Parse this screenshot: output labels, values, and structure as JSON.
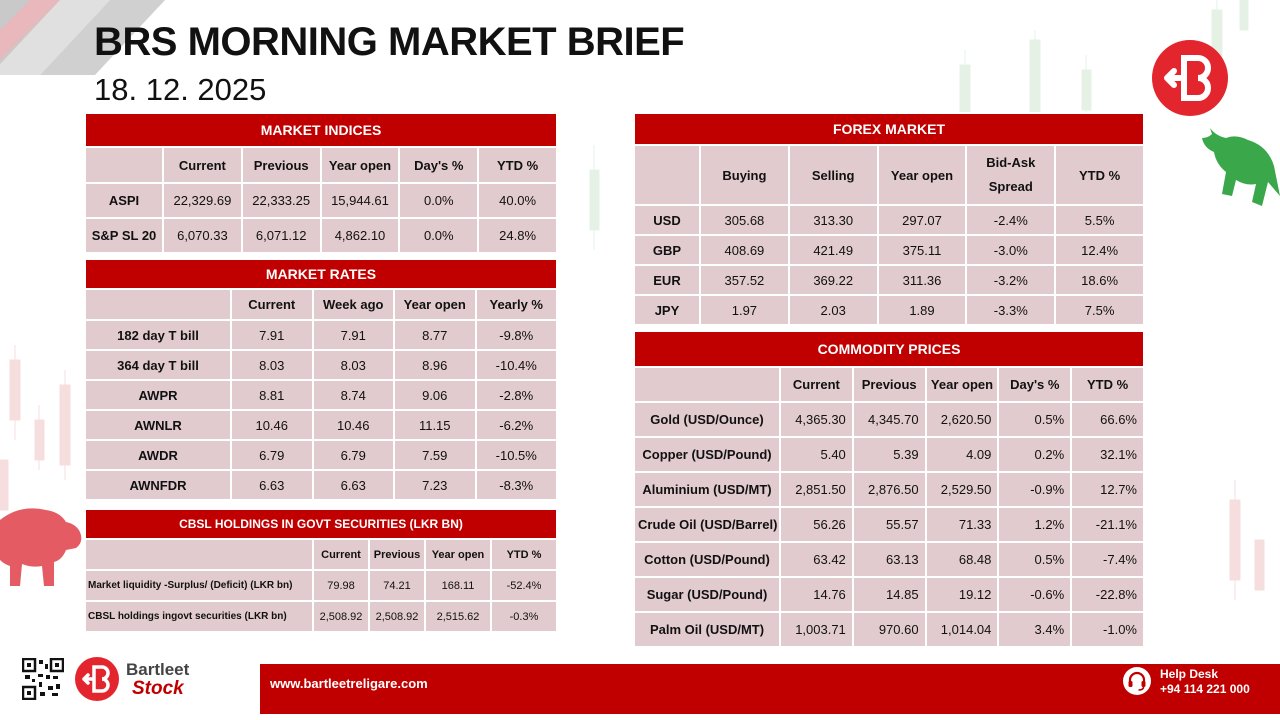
{
  "header": {
    "title": "BRS MORNING MARKET BRIEF",
    "date": "18. 12. 2025"
  },
  "colors": {
    "accent": "#c00000",
    "cell": "#e2cbcf"
  },
  "icons": [
    "bartleet-logo-icon",
    "bull-icon",
    "bear-icon",
    "qr-code-icon",
    "headset-icon"
  ],
  "market_indices": {
    "title": "MARKET INDICES",
    "headers": [
      "Current",
      "Previous",
      "Year open",
      "Day's %",
      "YTD %"
    ],
    "rows": [
      {
        "label": "ASPI",
        "values": [
          "22,329.69",
          "22,333.25",
          "15,944.61",
          "0.0%",
          "40.0%"
        ]
      },
      {
        "label": "S&P SL 20",
        "values": [
          "6,070.33",
          "6,071.12",
          "4,862.10",
          "0.0%",
          "24.8%"
        ]
      }
    ]
  },
  "market_rates": {
    "title": "MARKET RATES",
    "headers": [
      "Current",
      "Week ago",
      "Year open",
      "Yearly %"
    ],
    "rows": [
      {
        "label": "182 day T bill",
        "values": [
          "7.91",
          "7.91",
          "8.77",
          "-9.8%"
        ]
      },
      {
        "label": "364 day T bill",
        "values": [
          "8.03",
          "8.03",
          "8.96",
          "-10.4%"
        ]
      },
      {
        "label": "AWPR",
        "values": [
          "8.81",
          "8.74",
          "9.06",
          "-2.8%"
        ]
      },
      {
        "label": "AWNLR",
        "values": [
          "10.46",
          "10.46",
          "11.15",
          "-6.2%"
        ]
      },
      {
        "label": "AWDR",
        "values": [
          "6.79",
          "6.79",
          "7.59",
          "-10.5%"
        ]
      },
      {
        "label": "AWNFDR",
        "values": [
          "6.63",
          "6.63",
          "7.23",
          "-8.3%"
        ]
      }
    ]
  },
  "cbsl": {
    "title": "CBSL HOLDINGS IN GOVT SECURITIES (LKR BN)",
    "headers": [
      "Current",
      "Previous",
      "Year open",
      "YTD %"
    ],
    "rows": [
      {
        "label": "Market liquidity -Surplus/ (Deficit) (LKR bn)",
        "values": [
          "79.98",
          "74.21",
          "168.11",
          "-52.4%"
        ]
      },
      {
        "label": "CBSL holdings ingovt securities (LKR bn)",
        "values": [
          "2,508.92",
          "2,508.92",
          "2,515.62",
          "-0.3%"
        ]
      }
    ]
  },
  "forex": {
    "title": "FOREX MARKET",
    "headers": [
      "Buying",
      "Selling",
      "Year open",
      "Bid-Ask Spread",
      "YTD %"
    ],
    "rows": [
      {
        "label": "USD",
        "values": [
          "305.68",
          "313.30",
          "297.07",
          "-2.4%",
          "5.5%"
        ]
      },
      {
        "label": "GBP",
        "values": [
          "408.69",
          "421.49",
          "375.11",
          "-3.0%",
          "12.4%"
        ]
      },
      {
        "label": "EUR",
        "values": [
          "357.52",
          "369.22",
          "311.36",
          "-3.2%",
          "18.6%"
        ]
      },
      {
        "label": "JPY",
        "values": [
          "1.97",
          "2.03",
          "1.89",
          "-3.3%",
          "7.5%"
        ]
      }
    ]
  },
  "commodity": {
    "title": "COMMODITY PRICES",
    "headers": [
      "Current",
      "Previous",
      "Year open",
      "Day's %",
      "YTD %"
    ],
    "rows": [
      {
        "label": "Gold (USD/Ounce)",
        "values": [
          "4,365.30",
          "4,345.70",
          "2,620.50",
          "0.5%",
          "66.6%"
        ]
      },
      {
        "label": "Copper (USD/Pound)",
        "values": [
          "5.40",
          "5.39",
          "4.09",
          "0.2%",
          "32.1%"
        ]
      },
      {
        "label": "Aluminium (USD/MT)",
        "values": [
          "2,851.50",
          "2,876.50",
          "2,529.50",
          "-0.9%",
          "12.7%"
        ]
      },
      {
        "label": "Crude Oil (USD/Barrel)",
        "values": [
          "56.26",
          "55.57",
          "71.33",
          "1.2%",
          "-21.1%"
        ]
      },
      {
        "label": "Cotton (USD/Pound)",
        "values": [
          "63.42",
          "63.13",
          "68.48",
          "0.5%",
          "-7.4%"
        ]
      },
      {
        "label": "Sugar (USD/Pound)",
        "values": [
          "14.76",
          "14.85",
          "19.12",
          "-0.6%",
          "-22.8%"
        ]
      },
      {
        "label": "Palm Oil (USD/MT)",
        "values": [
          "1,003.71",
          "970.60",
          "1,014.04",
          "3.4%",
          "-1.0%"
        ]
      }
    ]
  },
  "footer": {
    "brand_top": "Bartleet",
    "brand_bottom": "Stock",
    "website": "www.bartleetreligare.com",
    "helpdesk_label": "Help Desk",
    "helpdesk_number": "+94 114 221 000"
  }
}
